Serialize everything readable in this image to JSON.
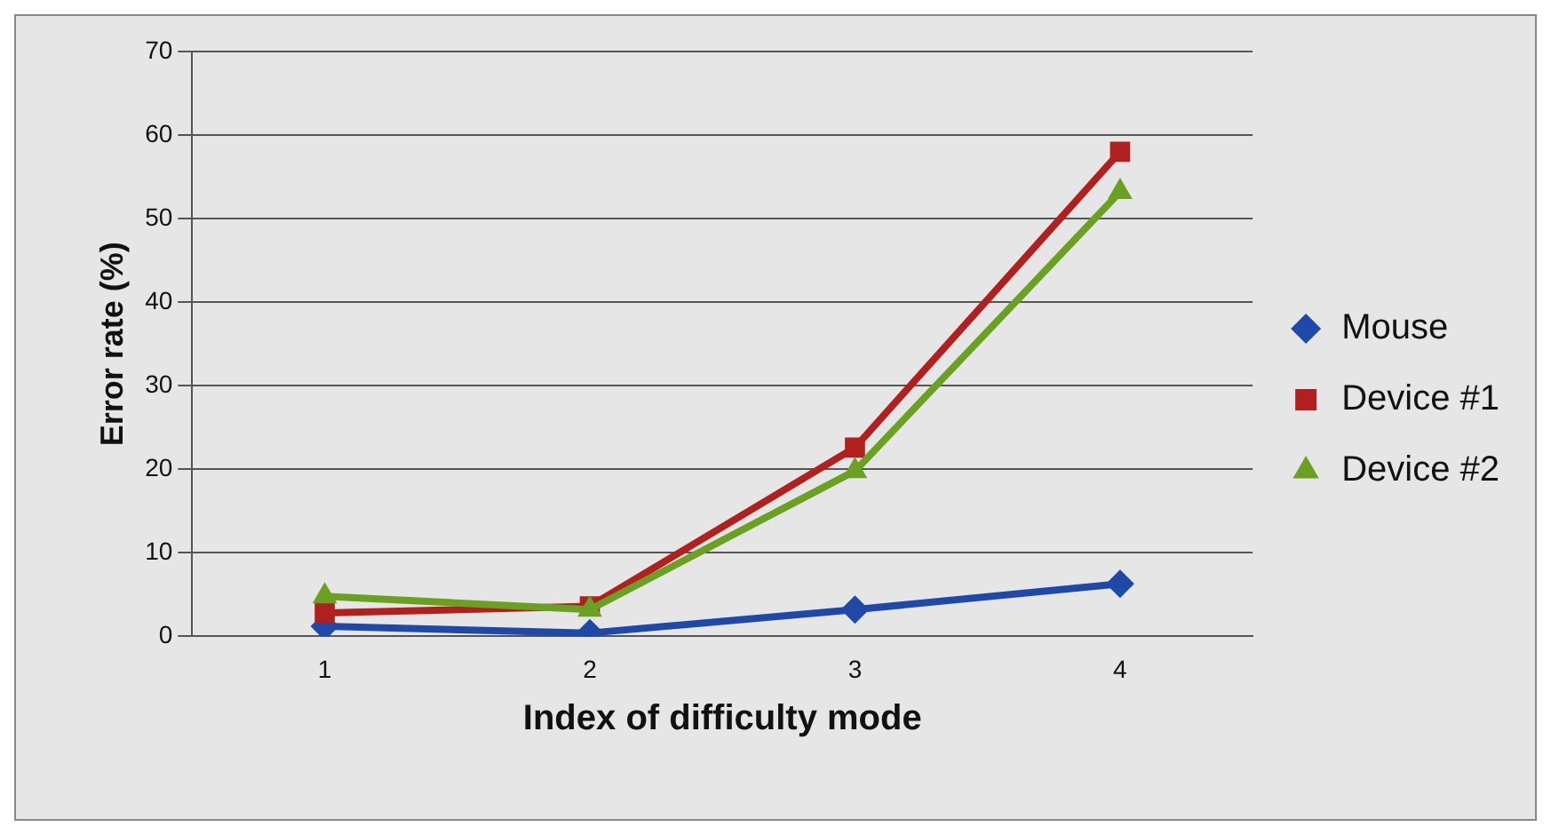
{
  "chart_data": {
    "type": "line",
    "xlabel": "Index of difficulty mode",
    "ylabel": "Error rate (%)",
    "categories": [
      "1",
      "2",
      "3",
      "4"
    ],
    "series": [
      {
        "name": "Mouse",
        "color": "#1f49a8",
        "values": [
          1.2,
          0.4,
          3.2,
          6.3
        ],
        "marker": "diamond"
      },
      {
        "name": "Device #1",
        "color": "#b0201f",
        "values": [
          2.8,
          3.6,
          22.6,
          58
        ],
        "marker": "square"
      },
      {
        "name": "Device #2",
        "color": "#6aa121",
        "values": [
          4.8,
          3.2,
          19.8,
          53.2
        ],
        "marker": "triangle"
      }
    ],
    "ylim": [
      0,
      70
    ],
    "yticks": [
      0,
      10,
      20,
      30,
      40,
      50,
      60,
      70
    ],
    "grid": "y",
    "legend": "right",
    "line_style": "solid"
  }
}
